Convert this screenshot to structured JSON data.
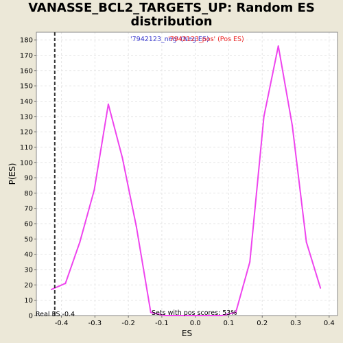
{
  "title_line1": "VANASSE_BCL2_TARGETS_UP: Random ES",
  "title_line2": "distribution",
  "chart_data": {
    "type": "line",
    "title": "VANASSE_BCL2_TARGETS_UP: Random ES distribution",
    "xlabel": "ES",
    "ylabel": "P(ES)",
    "xlim": [
      -0.475,
      0.425
    ],
    "ylim": [
      0,
      185
    ],
    "xticks": [
      -0.4,
      -0.3,
      -0.2,
      -0.1,
      0.0,
      0.1,
      0.2,
      0.3,
      0.4
    ],
    "xtick_labels": [
      "-0.4",
      "-0.3",
      "-0.2",
      "-0.1",
      "0.0",
      "0.1",
      "0.2",
      "0.3",
      "0.4"
    ],
    "yticks": [
      0,
      10,
      20,
      30,
      40,
      50,
      60,
      70,
      80,
      90,
      100,
      110,
      120,
      130,
      140,
      150,
      160,
      170,
      180
    ],
    "grid": true,
    "series": [
      {
        "color": "#ee44ee",
        "x": [
          -0.43,
          -0.388,
          -0.345,
          -0.302,
          -0.26,
          -0.218,
          -0.176,
          -0.133,
          -0.091,
          -0.049,
          -0.006,
          0.036,
          0.078,
          0.121,
          0.163,
          0.205,
          0.248,
          0.29,
          0.332,
          0.374
        ],
        "y": [
          17,
          21,
          48,
          82,
          138,
          103,
          58,
          2,
          0,
          0,
          0,
          0,
          0,
          2,
          35,
          130,
          176,
          124,
          48,
          18
        ]
      }
    ],
    "real_es": -0.42,
    "legend": {
      "neg_text": "'7942123_neg' (Neg ES)",
      "pos_text": "'7942123_pos' (Pos ES)",
      "neg_color": "#3333cc",
      "pos_color": "#ee2222"
    },
    "annotations": {
      "real_es_label": "Real ES -0.4",
      "pos_scores_label": "Sets with pos scores: 53%"
    }
  }
}
